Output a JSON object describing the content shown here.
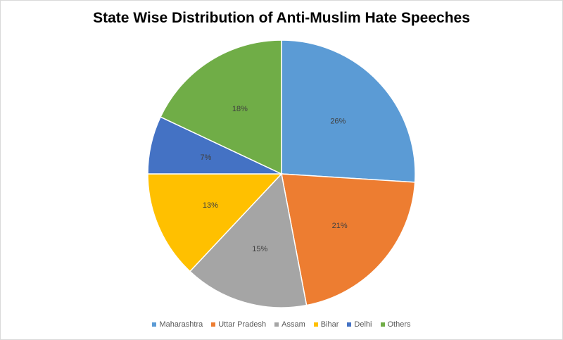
{
  "chart_data": {
    "type": "pie",
    "title": "State Wise Distribution of Anti-Muslim Hate Speeches",
    "categories": [
      "Maharashtra",
      "Uttar Pradesh",
      "Assam",
      "Bihar",
      "Delhi",
      "Others"
    ],
    "values": [
      26,
      21,
      15,
      13,
      7,
      18
    ],
    "labels": [
      "26%",
      "21%",
      "15%",
      "13%",
      "7%",
      "18%"
    ],
    "colors": [
      "#5b9bd5",
      "#ed7d31",
      "#a5a5a5",
      "#ffc000",
      "#4472c4",
      "#70ad47"
    ],
    "start_angle": "top",
    "direction": "clockwise",
    "legend_position": "bottom"
  }
}
